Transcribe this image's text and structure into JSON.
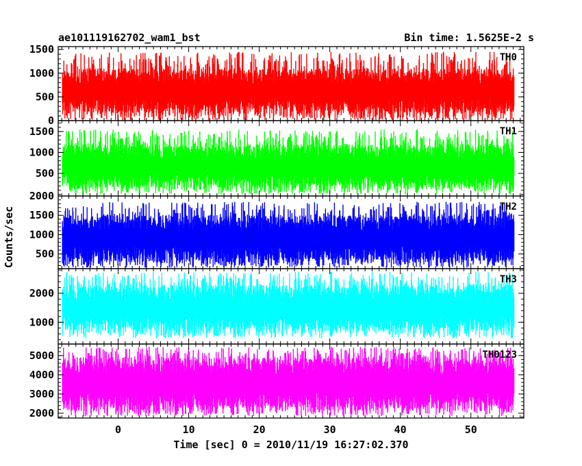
{
  "header": {
    "title": "ae101119162702_wam1_bst",
    "bin_time": "Bin time: 1.5625E-2 s"
  },
  "chart_data": {
    "type": "line",
    "title": "ae101119162702_wam1_bst",
    "xlabel": "Time [sec] 0 = 2010/11/19 16:27:02.370",
    "ylabel": "Counts/sec",
    "xlim": [
      -8.5,
      57.5
    ],
    "data_x_range": [
      -7.9,
      56.1
    ],
    "x_ticks": [
      0,
      10,
      20,
      30,
      40,
      50
    ],
    "x_tick_labels": [
      "0",
      "10",
      "20",
      "30",
      "40",
      "50"
    ],
    "grid": false,
    "legend": "none",
    "panels": [
      {
        "name": "TH0",
        "color": "#ff0000",
        "ylim": [
          0,
          1560
        ],
        "y_ticks": [
          0,
          500,
          1000,
          1500
        ],
        "y_tick_labels": [
          "0",
          "500",
          "1000",
          "1500"
        ],
        "typical_range": [
          150,
          1100
        ],
        "peak_range": [
          0,
          1450
        ]
      },
      {
        "name": "TH1",
        "color": "#00ff00",
        "ylim": [
          -40,
          1760
        ],
        "y_ticks": [
          500,
          1000,
          1500
        ],
        "y_tick_labels": [
          "500",
          "1000",
          "1500"
        ],
        "typical_range": [
          150,
          1200
        ],
        "peak_range": [
          0,
          1550
        ]
      },
      {
        "name": "TH2",
        "color": "#0000ff",
        "ylim": [
          120,
          2000
        ],
        "y_ticks": [
          500,
          1000,
          1500,
          2000
        ],
        "y_tick_labels": [
          "500",
          "1000",
          "1500",
          "2000"
        ],
        "typical_range": [
          300,
          1500
        ],
        "peak_range": [
          150,
          1850
        ]
      },
      {
        "name": "TH3",
        "color": "#00ffff",
        "ylim": [
          250,
          2850
        ],
        "y_ticks": [
          1000,
          2000
        ],
        "y_tick_labels": [
          "1000",
          "2000"
        ],
        "typical_range": [
          700,
          2300
        ],
        "peak_range": [
          450,
          2750
        ]
      },
      {
        "name": "TH0123",
        "color": "#ff00ff",
        "ylim": [
          1750,
          5600
        ],
        "y_ticks": [
          2000,
          3000,
          4000,
          5000
        ],
        "y_tick_labels": [
          "2000",
          "3000",
          "4000",
          "5000"
        ],
        "typical_range": [
          2200,
          4900
        ],
        "peak_range": [
          1850,
          5450
        ]
      }
    ]
  }
}
